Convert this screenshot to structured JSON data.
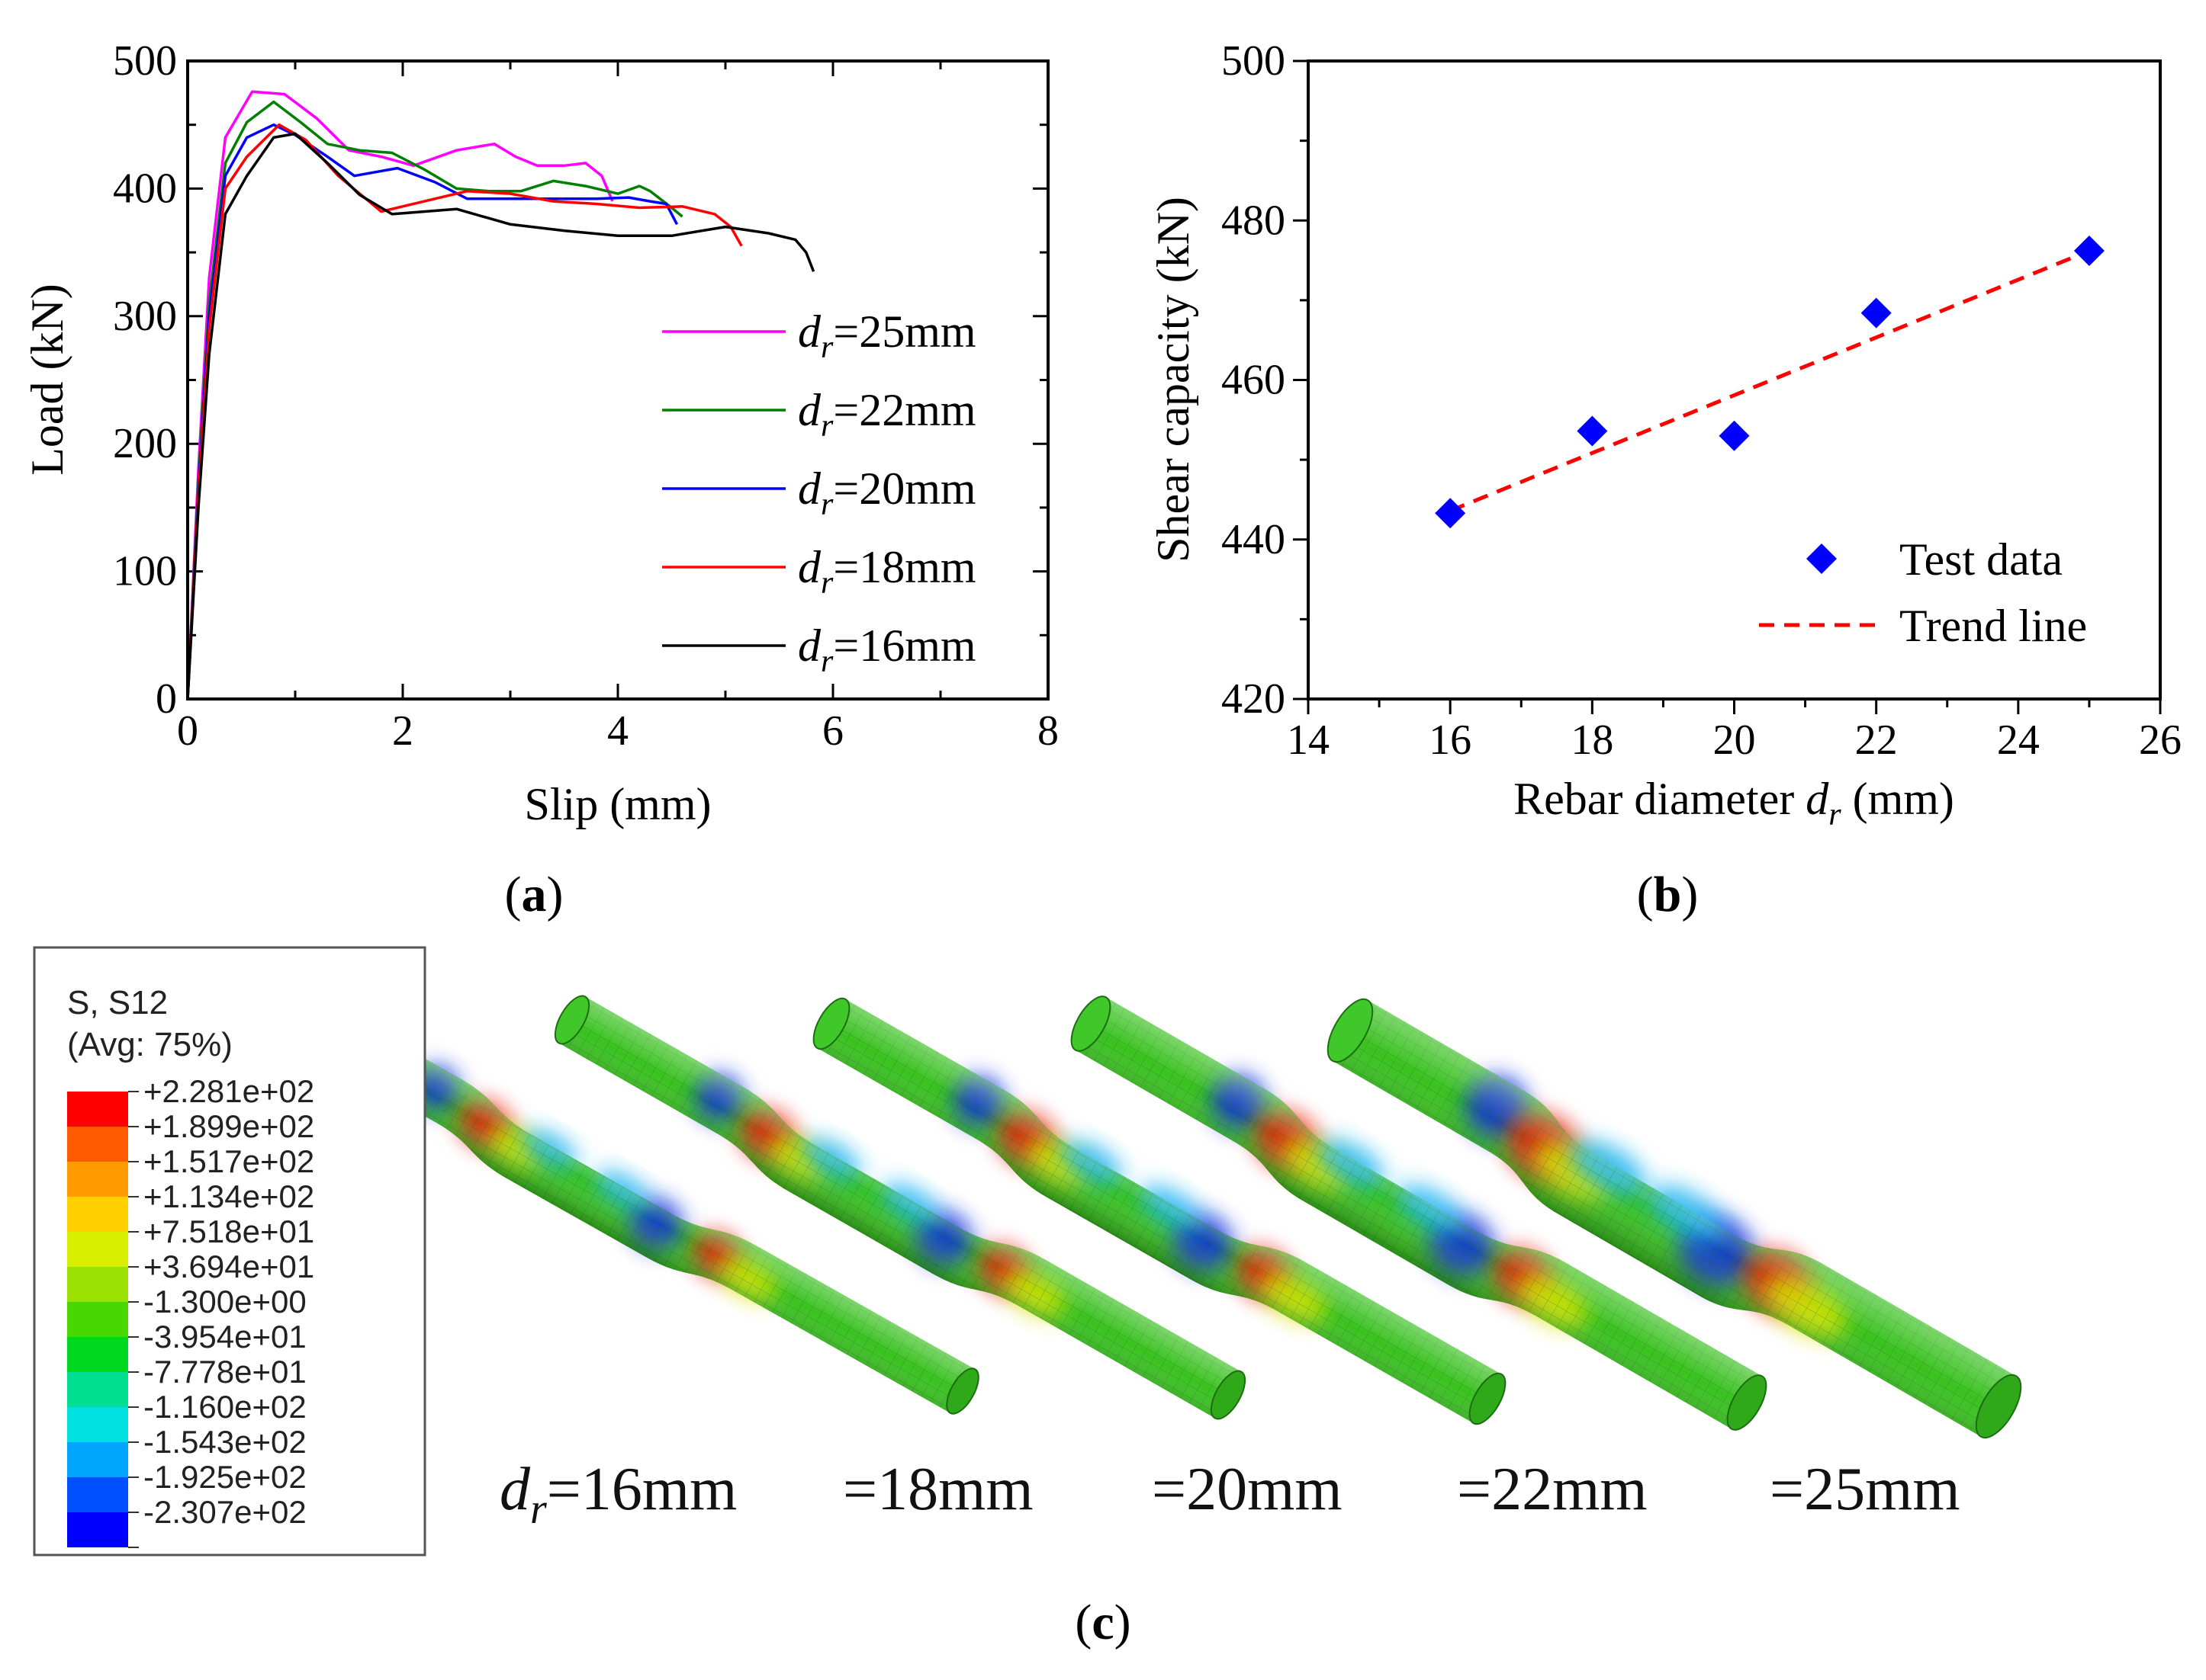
{
  "panels": {
    "a": {
      "label": "a"
    },
    "b": {
      "label": "b"
    },
    "c": {
      "label": "c"
    }
  },
  "chart_data": [
    {
      "id": "a",
      "type": "line",
      "title": "",
      "xlabel": "Slip (mm)",
      "ylabel": "Load (kN)",
      "xlim": [
        0,
        8
      ],
      "ylim": [
        0,
        500
      ],
      "xticks": [
        0,
        2,
        4,
        6,
        8
      ],
      "yticks": [
        0,
        100,
        200,
        300,
        400,
        500
      ],
      "legend_position": "right",
      "legend_prefix": "d",
      "legend_sub": "r",
      "series": [
        {
          "name": "d_r=25mm",
          "legend_rest": "=25mm",
          "color": "#ff00ff",
          "x": [
            0,
            0.1,
            0.2,
            0.35,
            0.6,
            0.9,
            1.2,
            1.5,
            1.8,
            2.1,
            2.5,
            2.85,
            3.05,
            3.25,
            3.5,
            3.7,
            3.85,
            3.95
          ],
          "y": [
            0,
            180,
            330,
            440,
            476,
            474,
            455,
            430,
            425,
            418,
            430,
            435,
            425,
            418,
            418,
            420,
            410,
            390
          ]
        },
        {
          "name": "d_r=22mm",
          "legend_rest": "=22mm",
          "color": "#008000",
          "x": [
            0,
            0.1,
            0.2,
            0.35,
            0.55,
            0.8,
            1.05,
            1.3,
            1.6,
            1.9,
            2.2,
            2.5,
            2.8,
            3.1,
            3.4,
            3.7,
            4.0,
            4.2,
            4.3,
            4.5,
            4.6
          ],
          "y": [
            0,
            170,
            310,
            420,
            452,
            468,
            452,
            435,
            430,
            428,
            415,
            400,
            398,
            398,
            406,
            402,
            396,
            402,
            398,
            385,
            378
          ]
        },
        {
          "name": "d_r=20mm",
          "legend_rest": "=20mm",
          "color": "#0000ff",
          "x": [
            0,
            0.1,
            0.2,
            0.35,
            0.55,
            0.8,
            1.0,
            1.3,
            1.55,
            1.95,
            2.3,
            2.6,
            3.0,
            3.4,
            3.8,
            4.1,
            4.3,
            4.45,
            4.55
          ],
          "y": [
            0,
            165,
            300,
            410,
            440,
            450,
            442,
            425,
            410,
            416,
            405,
            392,
            392,
            392,
            392,
            393,
            390,
            388,
            372
          ]
        },
        {
          "name": "d_r=18mm",
          "legend_rest": "=18mm",
          "color": "#ff0000",
          "x": [
            0,
            0.1,
            0.2,
            0.35,
            0.55,
            0.85,
            1.1,
            1.4,
            1.8,
            2.2,
            2.6,
            3.0,
            3.4,
            3.8,
            4.2,
            4.6,
            4.9,
            5.05,
            5.15
          ],
          "y": [
            0,
            160,
            290,
            400,
            425,
            450,
            438,
            410,
            382,
            390,
            398,
            396,
            390,
            388,
            385,
            386,
            380,
            370,
            355
          ]
        },
        {
          "name": "d_r=16mm",
          "legend_rest": "=16mm",
          "color": "#000000",
          "x": [
            0,
            0.1,
            0.2,
            0.35,
            0.55,
            0.8,
            1.0,
            1.3,
            1.6,
            1.9,
            2.5,
            3.0,
            3.5,
            4.0,
            4.5,
            5.0,
            5.4,
            5.65,
            5.75,
            5.82
          ],
          "y": [
            0,
            150,
            270,
            380,
            410,
            440,
            443,
            420,
            395,
            380,
            384,
            372,
            367,
            363,
            363,
            370,
            365,
            360,
            350,
            335
          ]
        }
      ]
    },
    {
      "id": "b",
      "type": "scatter",
      "title": "",
      "xlabel_prefix": "Rebar diameter ",
      "xlabel_var": "d",
      "xlabel_sub": "r",
      "xlabel_unit": " (mm)",
      "ylabel": "Shear capacity (kN)",
      "xlim": [
        14,
        26
      ],
      "ylim": [
        420,
        500
      ],
      "xticks": [
        14,
        16,
        18,
        20,
        22,
        24,
        26
      ],
      "yticks": [
        420,
        440,
        460,
        480,
        500
      ],
      "legend_position": "bottom-right",
      "series": [
        {
          "name": "Test data",
          "color": "#0000ff",
          "marker": "diamond",
          "x": [
            16,
            18,
            20,
            22,
            25
          ],
          "y": [
            443.3,
            453.6,
            453.0,
            468.4,
            476.2
          ]
        },
        {
          "name": "Trend line",
          "color": "#ff0000",
          "style": "dashed",
          "x": [
            16,
            25
          ],
          "y": [
            443.6,
            476.2
          ]
        }
      ]
    }
  ],
  "contour": {
    "title_line1": "S, S12",
    "title_line2": "(Avg: 75%)",
    "scale": [
      {
        "value": "+2.281e+02",
        "color": "#ff0000"
      },
      {
        "value": "+1.899e+02",
        "color": "#ff5a00"
      },
      {
        "value": "+1.517e+02",
        "color": "#ff9a00"
      },
      {
        "value": "+1.134e+02",
        "color": "#ffcf00"
      },
      {
        "value": "+7.518e+01",
        "color": "#d8f000"
      },
      {
        "value": "+3.694e+01",
        "color": "#9ae000"
      },
      {
        "value": "-1.300e+00",
        "color": "#48d800"
      },
      {
        "value": "-3.954e+01",
        "color": "#00d820"
      },
      {
        "value": "-7.778e+01",
        "color": "#00e090"
      },
      {
        "value": "-1.160e+02",
        "color": "#00e0e0"
      },
      {
        "value": "-1.543e+02",
        "color": "#00a6ff"
      },
      {
        "value": "-1.925e+02",
        "color": "#0050ff"
      },
      {
        "value": "-2.307e+02",
        "color": "#0000ff"
      }
    ],
    "bars": [
      {
        "label_var": "d",
        "label_sub": "r",
        "label_rest": "=16mm"
      },
      {
        "label_rest": "=18mm"
      },
      {
        "label_rest": "=20mm"
      },
      {
        "label_rest": "=22mm"
      },
      {
        "label_rest": "=25mm"
      }
    ]
  }
}
